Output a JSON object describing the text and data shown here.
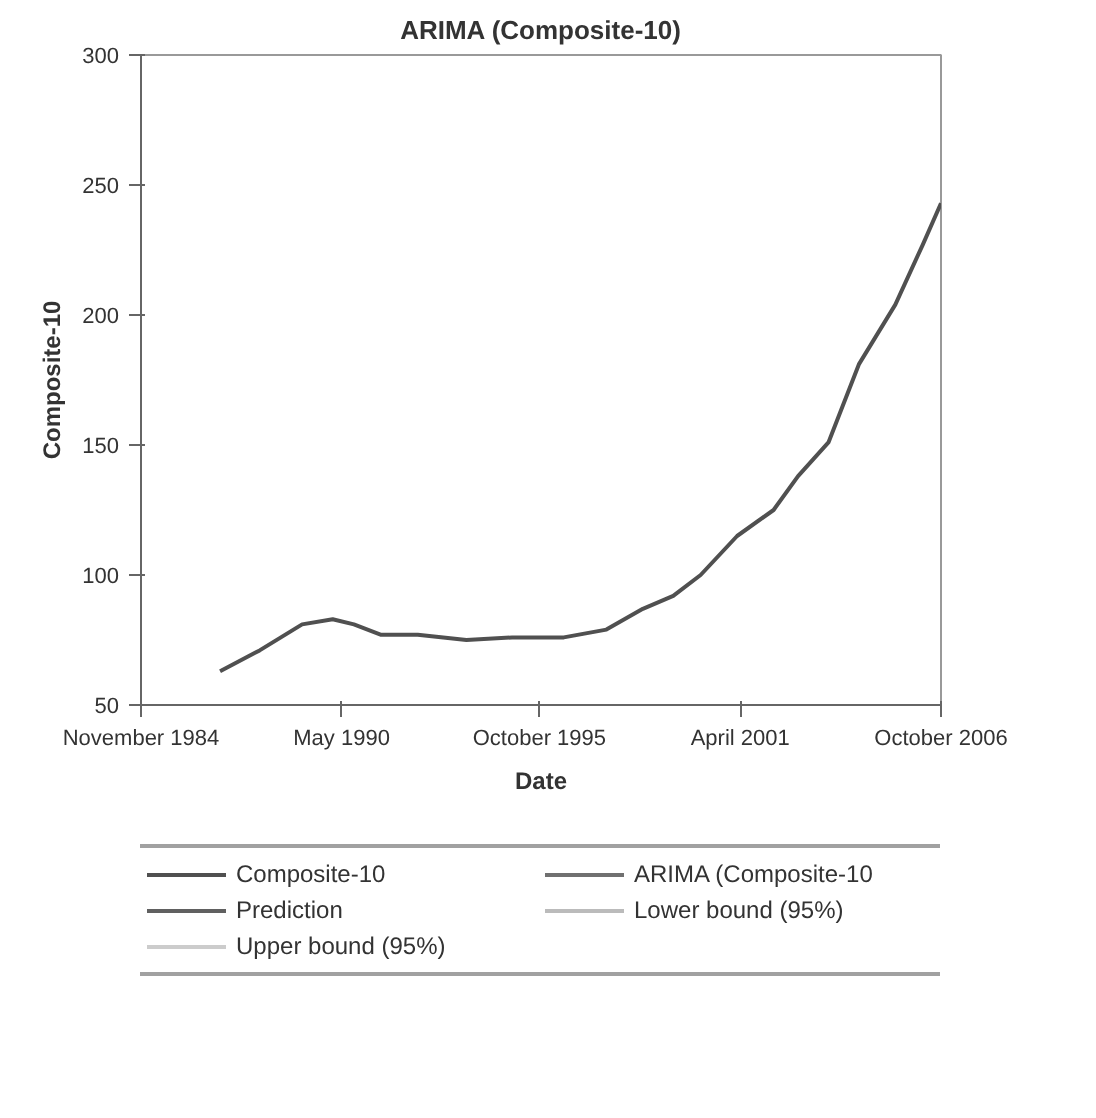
{
  "chart_data": {
    "type": "line",
    "title": "ARIMA (Composite-10)",
    "xlabel": "Date",
    "ylabel": "Composite-10",
    "x": [
      "1987-01",
      "1988-02",
      "1989-04",
      "1990-02",
      "1990-09",
      "1991-06",
      "1992-06",
      "1993-10",
      "1995-01",
      "1996-06",
      "1997-08",
      "1998-08",
      "1999-06",
      "2000-03",
      "2001-03",
      "2002-03",
      "2002-11",
      "2003-09",
      "2004-07",
      "2005-07",
      "2006-04",
      "2006-10"
    ],
    "series": [
      {
        "name": "Composite-10",
        "color": "#505050",
        "values": [
          63,
          71,
          81,
          83,
          81,
          77,
          77,
          75,
          76,
          76,
          79,
          87,
          92,
          100,
          115,
          125,
          138,
          151,
          181,
          204,
          227,
          243
        ]
      },
      {
        "name": "ARIMA (Composite-10",
        "color": "#707070",
        "values": [
          null,
          null,
          null,
          null,
          null,
          null,
          null,
          null,
          null,
          null,
          null,
          null,
          null,
          null,
          null,
          null,
          null,
          null,
          null,
          null,
          null,
          null
        ]
      },
      {
        "name": "Prediction",
        "color": "#606060",
        "values": [
          null,
          null,
          null,
          null,
          null,
          null,
          null,
          null,
          null,
          null,
          null,
          null,
          null,
          null,
          null,
          null,
          null,
          null,
          null,
          null,
          null,
          null
        ]
      },
      {
        "name": "Lower bound (95%)",
        "color": "#bbbbbb",
        "values": [
          null,
          null,
          null,
          null,
          null,
          null,
          null,
          null,
          null,
          null,
          null,
          null,
          null,
          null,
          null,
          null,
          null,
          null,
          null,
          null,
          null,
          null
        ]
      },
      {
        "name": "Upper bound (95%)",
        "color": "#cccccc",
        "values": [
          null,
          null,
          null,
          null,
          null,
          null,
          null,
          null,
          null,
          null,
          null,
          null,
          null,
          null,
          null,
          null,
          null,
          null,
          null,
          null,
          null,
          null
        ]
      }
    ],
    "xlim": [
      "1984-11",
      "2006-10"
    ],
    "xticks": [
      {
        "value": "1984-11",
        "label": "November 1984"
      },
      {
        "value": "1990-05",
        "label": "May 1990"
      },
      {
        "value": "1995-10",
        "label": "October 1995"
      },
      {
        "value": "2001-04",
        "label": "April 2001"
      },
      {
        "value": "2006-10",
        "label": "October 2006"
      }
    ],
    "ylim": [
      50,
      300
    ],
    "yticks": [
      50,
      100,
      150,
      200,
      250,
      300
    ],
    "grid": false,
    "legend": "bottom",
    "marker": "none",
    "line_style": "solid"
  }
}
